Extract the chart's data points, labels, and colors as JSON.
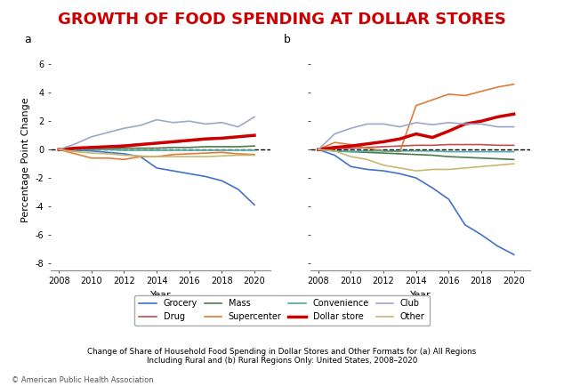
{
  "title": "GROWTH OF FOOD SPENDING AT DOLLAR STORES",
  "title_color": "#cc0000",
  "subtitle": "Change of Share of Household Food Spending in Dollar Stores and Other Formats for (a) All Regions\nIncluding Rural and (b) Rural Regions Only: United States, 2008–2020",
  "footer": "© American Public Health Association",
  "years": [
    2008,
    2009,
    2010,
    2011,
    2012,
    2013,
    2014,
    2015,
    2016,
    2017,
    2018,
    2019,
    2020
  ],
  "panel_a": {
    "Grocery": [
      0,
      -0.05,
      -0.1,
      -0.2,
      -0.3,
      -0.5,
      -1.3,
      -1.5,
      -1.7,
      -1.9,
      -2.2,
      -2.8,
      -3.9
    ],
    "Drug": [
      0,
      0.1,
      0.15,
      0.2,
      0.3,
      0.4,
      0.45,
      0.5,
      0.6,
      0.7,
      0.8,
      0.9,
      1.0
    ],
    "Mass": [
      0,
      0.0,
      0.05,
      0.05,
      0.1,
      0.1,
      0.1,
      0.15,
      0.15,
      0.2,
      0.2,
      0.2,
      0.25
    ],
    "Supercenter": [
      0,
      -0.3,
      -0.6,
      -0.6,
      -0.7,
      -0.5,
      -0.5,
      -0.35,
      -0.3,
      -0.25,
      -0.2,
      -0.3,
      -0.35
    ],
    "Convenience": [
      0,
      0.0,
      0.0,
      0.0,
      -0.05,
      -0.05,
      -0.05,
      -0.05,
      -0.05,
      -0.05,
      -0.05,
      -0.05,
      -0.05
    ],
    "Dollar store": [
      0,
      0.1,
      0.15,
      0.2,
      0.25,
      0.35,
      0.45,
      0.55,
      0.65,
      0.75,
      0.8,
      0.9,
      1.0
    ],
    "Club": [
      0,
      0.4,
      0.9,
      1.2,
      1.5,
      1.7,
      2.1,
      1.9,
      2.0,
      1.8,
      1.9,
      1.6,
      2.3
    ],
    "Other": [
      0,
      -0.15,
      -0.25,
      -0.3,
      -0.4,
      -0.45,
      -0.5,
      -0.5,
      -0.5,
      -0.5,
      -0.45,
      -0.4,
      -0.4
    ]
  },
  "panel_b": {
    "Grocery": [
      0,
      -0.4,
      -1.2,
      -1.4,
      -1.5,
      -1.7,
      -2.0,
      -2.7,
      -3.5,
      -5.3,
      -6.0,
      -6.8,
      -7.4
    ],
    "Drug": [
      0,
      0.05,
      0.1,
      0.15,
      0.2,
      0.25,
      0.3,
      0.3,
      0.35,
      0.35,
      0.35,
      0.3,
      0.3
    ],
    "Mass": [
      0,
      -0.1,
      -0.15,
      -0.2,
      -0.25,
      -0.3,
      -0.35,
      -0.4,
      -0.5,
      -0.55,
      -0.6,
      -0.65,
      -0.7
    ],
    "Supercenter": [
      0,
      0.5,
      0.35,
      0.1,
      -0.1,
      -0.15,
      3.1,
      3.5,
      3.9,
      3.8,
      4.1,
      4.4,
      4.6
    ],
    "Convenience": [
      0,
      -0.1,
      -0.15,
      -0.1,
      -0.1,
      -0.1,
      -0.1,
      -0.1,
      -0.15,
      -0.15,
      -0.15,
      -0.15,
      -0.15
    ],
    "Dollar store": [
      0,
      0.15,
      0.25,
      0.4,
      0.55,
      0.75,
      1.1,
      0.85,
      1.3,
      1.8,
      2.0,
      2.3,
      2.5
    ],
    "Club": [
      0,
      1.1,
      1.5,
      1.8,
      1.8,
      1.6,
      1.9,
      1.75,
      1.9,
      1.8,
      1.8,
      1.6,
      1.6
    ],
    "Other": [
      0,
      -0.1,
      -0.5,
      -0.7,
      -1.1,
      -1.3,
      -1.5,
      -1.4,
      -1.4,
      -1.3,
      -1.2,
      -1.1,
      -1.0
    ]
  },
  "colors": {
    "Grocery": "#4472c4",
    "Drug": "#c0504d",
    "Mass": "#4e7a4e",
    "Supercenter": "#e07b39",
    "Convenience": "#4baaa0",
    "Dollar store": "#cc0000",
    "Club": "#9da7c8",
    "Other": "#c8b870"
  },
  "linewidths": {
    "Grocery": 1.2,
    "Drug": 1.2,
    "Mass": 1.2,
    "Supercenter": 1.2,
    "Convenience": 1.2,
    "Dollar store": 2.5,
    "Club": 1.2,
    "Other": 1.2
  },
  "legend_order": [
    "Grocery",
    "Drug",
    "Mass",
    "Supercenter",
    "Convenience",
    "Dollar store",
    "Club",
    "Other"
  ],
  "ylim": [
    -8.5,
    7
  ],
  "yticks": [
    -8,
    -6,
    -4,
    -2,
    0,
    2,
    4,
    6
  ],
  "bg_color": "#ffffff"
}
